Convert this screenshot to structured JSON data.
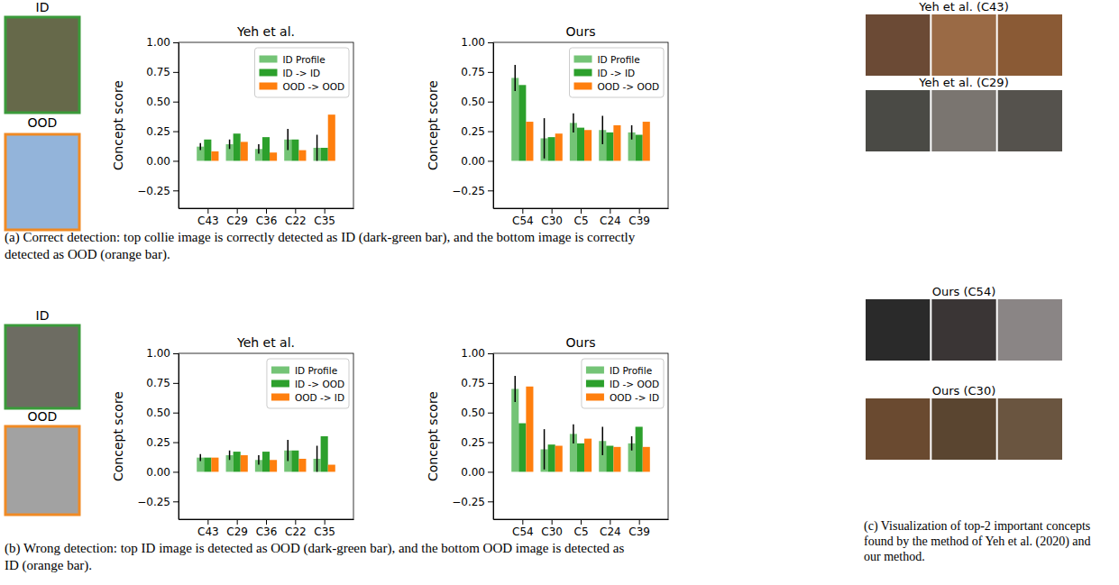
{
  "chart_data": [
    {
      "type": "bar",
      "title": "Yeh et al.",
      "y_label": "Concept score",
      "categories": [
        "C43",
        "C29",
        "C36",
        "C22",
        "C35"
      ],
      "series": [
        {
          "name": "ID Profile",
          "color": "#74c476",
          "values": [
            0.12,
            0.14,
            0.1,
            0.18,
            0.11
          ],
          "errors": [
            0.03,
            0.04,
            0.04,
            0.09,
            0.11
          ]
        },
        {
          "name": "ID -> ID",
          "color": "#2ca02c",
          "values": [
            0.18,
            0.23,
            0.2,
            0.18,
            0.11
          ]
        },
        {
          "name": "OOD -> OOD",
          "color": "#ff7f0e",
          "values": [
            0.08,
            0.16,
            0.07,
            0.09,
            0.39
          ]
        }
      ],
      "ylim": [
        -0.4,
        1.0
      ],
      "yticks": [
        {
          "value": -0.25,
          "label": "−0.25"
        },
        {
          "value": 0,
          "label": "0.00"
        },
        0.25,
        {
          "value": 0.5,
          "label": "0.50"
        },
        0.75,
        {
          "value": 1,
          "label": "1.00"
        }
      ],
      "legend": "upper right",
      "grid": false
    },
    {
      "type": "bar",
      "title": "Ours",
      "y_label": "Concept score",
      "categories": [
        "C54",
        "C30",
        "C5",
        "C24",
        "C39"
      ],
      "series": [
        {
          "name": "ID Profile",
          "color": "#74c476",
          "values": [
            0.7,
            0.19,
            0.32,
            0.26,
            0.24
          ],
          "errors": [
            0.11,
            0.17,
            0.08,
            0.12,
            0.06
          ]
        },
        {
          "name": "ID -> ID",
          "color": "#2ca02c",
          "values": [
            0.64,
            0.2,
            0.28,
            0.24,
            0.22
          ]
        },
        {
          "name": "OOD -> OOD",
          "color": "#ff7f0e",
          "values": [
            0.33,
            0.23,
            0.26,
            0.3,
            0.33
          ]
        }
      ],
      "ylim": [
        -0.4,
        1.0
      ],
      "yticks": [
        {
          "value": -0.25,
          "label": "−0.25"
        },
        {
          "value": 0,
          "label": "0.00"
        },
        0.25,
        {
          "value": 0.5,
          "label": "0.50"
        },
        0.75,
        {
          "value": 1,
          "label": "1.00"
        }
      ],
      "legend": "upper right",
      "grid": false
    },
    {
      "type": "bar",
      "title": "Yeh et al.",
      "y_label": "Concept score",
      "categories": [
        "C43",
        "C29",
        "C36",
        "C22",
        "C35"
      ],
      "series": [
        {
          "name": "ID Profile",
          "color": "#74c476",
          "values": [
            0.12,
            0.14,
            0.1,
            0.18,
            0.11
          ],
          "errors": [
            0.03,
            0.04,
            0.04,
            0.09,
            0.11
          ]
        },
        {
          "name": "ID -> OOD",
          "color": "#2ca02c",
          "values": [
            0.12,
            0.17,
            0.17,
            0.18,
            0.3
          ]
        },
        {
          "name": "OOD -> ID",
          "color": "#ff7f0e",
          "values": [
            0.12,
            0.14,
            0.1,
            0.11,
            0.06
          ]
        }
      ],
      "ylim": [
        -0.4,
        1.0
      ],
      "yticks": [
        {
          "value": -0.25,
          "label": "−0.25"
        },
        {
          "value": 0,
          "label": "0.00"
        },
        0.25,
        {
          "value": 0.5,
          "label": "0.50"
        },
        0.75,
        {
          "value": 1,
          "label": "1.00"
        }
      ],
      "legend": "upper right",
      "grid": false
    },
    {
      "type": "bar",
      "title": "Ours",
      "y_label": "Concept score",
      "categories": [
        "C54",
        "C30",
        "C5",
        "C24",
        "C39"
      ],
      "series": [
        {
          "name": "ID Profile",
          "color": "#74c476",
          "values": [
            0.7,
            0.19,
            0.32,
            0.26,
            0.24
          ],
          "errors": [
            0.11,
            0.17,
            0.08,
            0.12,
            0.06
          ]
        },
        {
          "name": "ID -> OOD",
          "color": "#2ca02c",
          "values": [
            0.41,
            0.23,
            0.24,
            0.22,
            0.38
          ]
        },
        {
          "name": "OOD -> ID",
          "color": "#ff7f0e",
          "values": [
            0.72,
            0.22,
            0.28,
            0.21,
            0.21
          ]
        }
      ],
      "ylim": [
        -0.4,
        1.0
      ],
      "yticks": [
        {
          "value": -0.25,
          "label": "−0.25"
        },
        {
          "value": 0,
          "label": "0.00"
        },
        0.25,
        {
          "value": 0.5,
          "label": "0.50"
        },
        0.75,
        {
          "value": 1,
          "label": "1.00"
        }
      ],
      "legend": "upper right",
      "grid": false
    }
  ],
  "panels": [
    {
      "id_label": "ID",
      "ood_label": "OOD",
      "caption": "(a) Correct detection: top collie image is correctly detected as ID (dark-green bar), and the bottom image is correctly detected as OOD (orange bar)."
    },
    {
      "id_label": "ID",
      "ood_label": "OOD",
      "caption": "(b) Wrong detection: top ID image is detected as OOD (dark-green bar), and the bottom OOD image is detected as ID (orange bar)."
    }
  ],
  "concept_panels": [
    {
      "title": "Yeh et al. (C43)"
    },
    {
      "title": "Yeh et al. (C29)"
    },
    {
      "title": "Ours (C54)"
    },
    {
      "title": "Ours (C30)"
    }
  ],
  "concept_caption": "(c) Visualization of top-2 important concepts found by the method of Yeh et al. (2020) and our method."
}
